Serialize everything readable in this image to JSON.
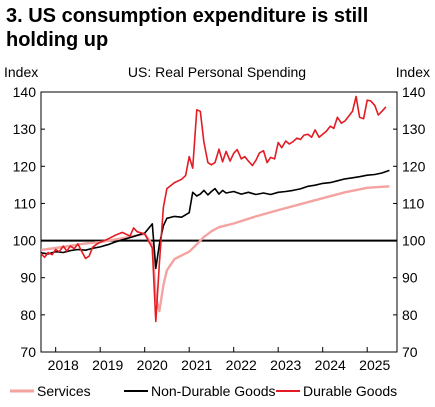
{
  "heading": "3. US consumption expenditure is still holding up",
  "chart_data": {
    "type": "line",
    "title": "US: Real Personal Spending",
    "ylabel_left": "Index",
    "ylabel_right": "Index",
    "xlim": [
      2017.67,
      2025.67
    ],
    "ylim": [
      70,
      140
    ],
    "yticks": [
      70,
      80,
      90,
      100,
      110,
      120,
      130,
      140
    ],
    "xticks": [
      {
        "label": "2018",
        "pos": 2018.17
      },
      {
        "label": "2019",
        "pos": 2019.17
      },
      {
        "label": "2020",
        "pos": 2020.17
      },
      {
        "label": "2021",
        "pos": 2021.17
      },
      {
        "label": "2022",
        "pos": 2022.17
      },
      {
        "label": "2023",
        "pos": 2023.17
      },
      {
        "label": "2024",
        "pos": 2024.17
      },
      {
        "label": "2025",
        "pos": 2025.17
      }
    ],
    "reference_line": 100,
    "grid": false,
    "legend_position": "bottom",
    "series": [
      {
        "name": "Services",
        "color": "#f4a3a0",
        "points": [
          [
            2017.67,
            97.5
          ],
          [
            2018.0,
            98
          ],
          [
            2018.33,
            98.6
          ],
          [
            2018.67,
            99.2
          ],
          [
            2019.0,
            99.6
          ],
          [
            2019.33,
            100.3
          ],
          [
            2019.67,
            101
          ],
          [
            2019.92,
            101.6
          ],
          [
            2020.0,
            101.8
          ],
          [
            2020.17,
            99
          ],
          [
            2020.25,
            85
          ],
          [
            2020.33,
            81
          ],
          [
            2020.42,
            88
          ],
          [
            2020.5,
            92
          ],
          [
            2020.67,
            95
          ],
          [
            2020.83,
            96
          ],
          [
            2021.0,
            97
          ],
          [
            2021.17,
            99
          ],
          [
            2021.33,
            101
          ],
          [
            2021.5,
            102.5
          ],
          [
            2021.67,
            103.6
          ],
          [
            2022.0,
            104.6
          ],
          [
            2022.5,
            106.5
          ],
          [
            2023.0,
            108.2
          ],
          [
            2023.5,
            109.8
          ],
          [
            2024.0,
            111.4
          ],
          [
            2024.5,
            113
          ],
          [
            2025.0,
            114.2
          ],
          [
            2025.5,
            114.6
          ]
        ]
      },
      {
        "name": "Non-Durable Goods",
        "color": "#000000",
        "points": [
          [
            2017.67,
            96.7
          ],
          [
            2017.83,
            96.4
          ],
          [
            2018.0,
            97
          ],
          [
            2018.17,
            96.8
          ],
          [
            2018.33,
            97.3
          ],
          [
            2018.5,
            97.6
          ],
          [
            2018.67,
            97.4
          ],
          [
            2018.83,
            97.9
          ],
          [
            2019.0,
            98.3
          ],
          [
            2019.17,
            98.9
          ],
          [
            2019.33,
            99.6
          ],
          [
            2019.5,
            100.2
          ],
          [
            2019.67,
            100.8
          ],
          [
            2019.83,
            101.4
          ],
          [
            2020.0,
            102
          ],
          [
            2020.17,
            104.5
          ],
          [
            2020.25,
            92.5
          ],
          [
            2020.33,
            99
          ],
          [
            2020.42,
            104
          ],
          [
            2020.5,
            106
          ],
          [
            2020.67,
            106.5
          ],
          [
            2020.83,
            106.3
          ],
          [
            2021.0,
            107.5
          ],
          [
            2021.08,
            113
          ],
          [
            2021.17,
            112
          ],
          [
            2021.25,
            112.5
          ],
          [
            2021.33,
            113.5
          ],
          [
            2021.42,
            112.3
          ],
          [
            2021.5,
            113.2
          ],
          [
            2021.58,
            114
          ],
          [
            2021.67,
            112.5
          ],
          [
            2021.75,
            113.5
          ],
          [
            2021.83,
            112.8
          ],
          [
            2022.0,
            113.2
          ],
          [
            2022.17,
            112.5
          ],
          [
            2022.33,
            113
          ],
          [
            2022.5,
            112.4
          ],
          [
            2022.67,
            112.8
          ],
          [
            2022.83,
            112.4
          ],
          [
            2023.0,
            113
          ],
          [
            2023.17,
            113.2
          ],
          [
            2023.33,
            113.5
          ],
          [
            2023.5,
            113.9
          ],
          [
            2023.67,
            114.6
          ],
          [
            2023.83,
            114.9
          ],
          [
            2024.0,
            115.4
          ],
          [
            2024.17,
            115.6
          ],
          [
            2024.33,
            116.1
          ],
          [
            2024.5,
            116.6
          ],
          [
            2024.67,
            116.9
          ],
          [
            2024.83,
            117.2
          ],
          [
            2025.0,
            117.6
          ],
          [
            2025.17,
            117.8
          ],
          [
            2025.33,
            118.2
          ],
          [
            2025.5,
            118.9
          ]
        ]
      },
      {
        "name": "Durable Goods",
        "color": "#e31b23",
        "points": [
          [
            2017.67,
            96.5
          ],
          [
            2017.75,
            95.5
          ],
          [
            2017.83,
            96.8
          ],
          [
            2017.92,
            96.2
          ],
          [
            2018.0,
            97.6
          ],
          [
            2018.08,
            97
          ],
          [
            2018.17,
            98.5
          ],
          [
            2018.25,
            97.2
          ],
          [
            2018.33,
            98.5
          ],
          [
            2018.42,
            97.8
          ],
          [
            2018.5,
            99.1
          ],
          [
            2018.58,
            97.2
          ],
          [
            2018.67,
            95.2
          ],
          [
            2018.75,
            95.8
          ],
          [
            2018.83,
            98.2
          ],
          [
            2018.92,
            99
          ],
          [
            2019.0,
            99.6
          ],
          [
            2019.17,
            100.4
          ],
          [
            2019.33,
            101.4
          ],
          [
            2019.5,
            102.2
          ],
          [
            2019.67,
            101.2
          ],
          [
            2019.75,
            103.4
          ],
          [
            2019.83,
            102.4
          ],
          [
            2020.0,
            101.8
          ],
          [
            2020.17,
            98
          ],
          [
            2020.25,
            78.2
          ],
          [
            2020.33,
            94
          ],
          [
            2020.42,
            109
          ],
          [
            2020.5,
            114
          ],
          [
            2020.67,
            115.6
          ],
          [
            2020.83,
            116.5
          ],
          [
            2020.92,
            117.5
          ],
          [
            2021.0,
            122.6
          ],
          [
            2021.08,
            119.5
          ],
          [
            2021.17,
            135.2
          ],
          [
            2021.25,
            134.8
          ],
          [
            2021.33,
            126.5
          ],
          [
            2021.42,
            121
          ],
          [
            2021.5,
            120.4
          ],
          [
            2021.58,
            121
          ],
          [
            2021.67,
            124.6
          ],
          [
            2021.75,
            121.2
          ],
          [
            2021.83,
            124
          ],
          [
            2021.92,
            121.4
          ],
          [
            2022.0,
            123.5
          ],
          [
            2022.08,
            124.5
          ],
          [
            2022.17,
            122
          ],
          [
            2022.25,
            122.6
          ],
          [
            2022.33,
            121.4
          ],
          [
            2022.42,
            120.2
          ],
          [
            2022.5,
            121.6
          ],
          [
            2022.58,
            123.6
          ],
          [
            2022.67,
            124.2
          ],
          [
            2022.75,
            121
          ],
          [
            2022.83,
            122.4
          ],
          [
            2022.92,
            122
          ],
          [
            2023.0,
            126.4
          ],
          [
            2023.08,
            125
          ],
          [
            2023.17,
            126.8
          ],
          [
            2023.25,
            126
          ],
          [
            2023.33,
            126.6
          ],
          [
            2023.42,
            127.6
          ],
          [
            2023.5,
            127.2
          ],
          [
            2023.58,
            128.4
          ],
          [
            2023.67,
            128.6
          ],
          [
            2023.75,
            127.8
          ],
          [
            2023.83,
            129.8
          ],
          [
            2023.92,
            127.8
          ],
          [
            2024.0,
            128.6
          ],
          [
            2024.08,
            129.4
          ],
          [
            2024.17,
            130.8
          ],
          [
            2024.25,
            130.2
          ],
          [
            2024.33,
            133.2
          ],
          [
            2024.42,
            131.6
          ],
          [
            2024.5,
            132.2
          ],
          [
            2024.58,
            133.4
          ],
          [
            2024.67,
            134.8
          ],
          [
            2024.75,
            138.8
          ],
          [
            2024.83,
            133.2
          ],
          [
            2024.92,
            132.8
          ],
          [
            2025.0,
            137.8
          ],
          [
            2025.08,
            137.6
          ],
          [
            2025.17,
            136.4
          ],
          [
            2025.25,
            133.8
          ],
          [
            2025.33,
            134.8
          ],
          [
            2025.42,
            136
          ]
        ]
      }
    ]
  }
}
